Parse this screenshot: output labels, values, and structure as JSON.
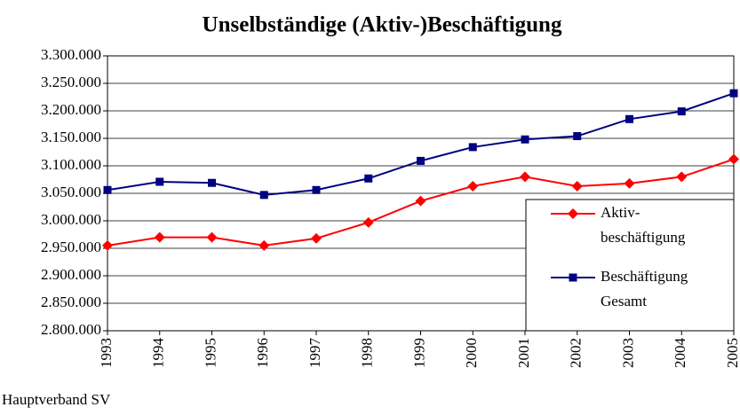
{
  "chart_data": {
    "type": "line",
    "title": "Unselbständige (Aktiv-)Beschäftigung",
    "source": "Hauptverband SV",
    "categories": [
      "1993",
      "1994",
      "1995",
      "1996",
      "1997",
      "1998",
      "1999",
      "2000",
      "2001",
      "2002",
      "2003",
      "2004",
      "2005"
    ],
    "series": [
      {
        "name": "Aktiv- beschäftigung",
        "color": "#ff0000",
        "marker": "diamond",
        "values": [
          2955000,
          2970000,
          2970000,
          2955000,
          2968000,
          2997000,
          3036000,
          3063000,
          3080000,
          3063000,
          3068000,
          3080000,
          3112000
        ]
      },
      {
        "name": "Beschäftigung Gesamt",
        "color": "#000080",
        "marker": "square",
        "values": [
          3056000,
          3071000,
          3069000,
          3047000,
          3056000,
          3077000,
          3109000,
          3134000,
          3148000,
          3154000,
          3185000,
          3199000,
          3232000
        ]
      }
    ],
    "ylim": [
      2800000,
      3300000
    ],
    "yticks": [
      {
        "value": 2800000,
        "label": "2.800.000"
      },
      {
        "value": 2850000,
        "label": "2.850.000"
      },
      {
        "value": 2900000,
        "label": "2.900.000"
      },
      {
        "value": 2950000,
        "label": "2.950.000"
      },
      {
        "value": 3000000,
        "label": "3.000.000"
      },
      {
        "value": 3050000,
        "label": "3.050.000"
      },
      {
        "value": 3100000,
        "label": "3.100.000"
      },
      {
        "value": 3150000,
        "label": "3.150.000"
      },
      {
        "value": 3200000,
        "label": "3.200.000"
      },
      {
        "value": 3250000,
        "label": "3.250.000"
      },
      {
        "value": 3300000,
        "label": "3.300.000"
      }
    ],
    "grid": true,
    "legend": "lower right"
  }
}
